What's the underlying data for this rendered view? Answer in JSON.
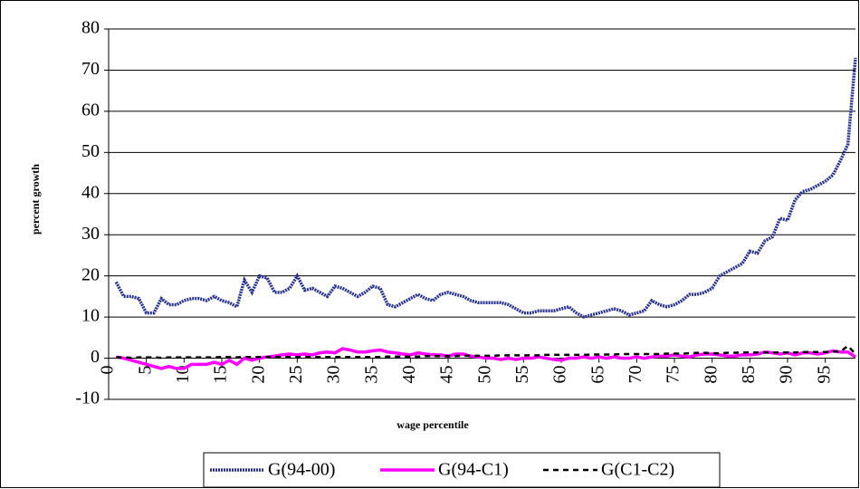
{
  "chart_data": {
    "type": "line",
    "x_label": "wage percentile",
    "y_label": "percent growth",
    "x": [
      1,
      2,
      3,
      4,
      5,
      6,
      7,
      8,
      9,
      10,
      11,
      12,
      13,
      14,
      15,
      16,
      17,
      18,
      19,
      20,
      21,
      22,
      23,
      24,
      25,
      26,
      27,
      28,
      29,
      30,
      31,
      32,
      33,
      34,
      35,
      36,
      37,
      38,
      39,
      40,
      41,
      42,
      43,
      44,
      45,
      46,
      47,
      48,
      49,
      50,
      51,
      52,
      53,
      54,
      55,
      56,
      57,
      58,
      59,
      60,
      61,
      62,
      63,
      64,
      65,
      66,
      67,
      68,
      69,
      70,
      71,
      72,
      73,
      74,
      75,
      76,
      77,
      78,
      79,
      80,
      81,
      82,
      83,
      84,
      85,
      86,
      87,
      88,
      89,
      90,
      91,
      92,
      93,
      94,
      95,
      96,
      97,
      98,
      99
    ],
    "series": [
      {
        "name": "G(94-00)",
        "color": "#26318f",
        "dashed": false,
        "values": [
          18.5,
          15,
          15,
          14.5,
          11,
          11,
          14.5,
          13,
          13,
          14,
          14.5,
          14.5,
          14,
          15,
          14,
          13.5,
          12.5,
          19,
          16,
          20,
          19.5,
          16,
          16,
          17,
          20,
          16.5,
          17,
          16,
          15,
          17.5,
          17,
          16,
          15,
          16,
          17.5,
          17,
          13,
          12.5,
          13.5,
          14.5,
          15.5,
          14.5,
          14,
          15.5,
          16,
          15.5,
          15,
          14,
          13.5,
          13.5,
          13.5,
          13.5,
          13,
          12,
          11,
          11,
          11.5,
          11.5,
          11.5,
          12,
          12.5,
          11,
          10,
          10.5,
          11,
          11.5,
          12,
          11.5,
          10.5,
          11,
          11.5,
          14,
          13,
          12.5,
          13,
          14,
          15.5,
          15.5,
          16,
          17,
          20,
          21,
          22,
          23,
          26,
          25.5,
          28.5,
          29.5,
          34,
          33.5,
          38.5,
          40.5,
          41,
          42,
          43,
          44.5,
          48,
          52,
          73
        ]
      },
      {
        "name": "G(94-C1)",
        "color": "#ff00ff",
        "dashed": false,
        "values": [
          0.3,
          0,
          -0.5,
          -1,
          -1.5,
          -2,
          -2.5,
          -2,
          -2.5,
          -2.5,
          -1.5,
          -1.5,
          -1.5,
          -1,
          -1.5,
          -0.5,
          -1.5,
          0,
          -0.5,
          0,
          0.3,
          0.5,
          0.8,
          1,
          0.8,
          1,
          0.8,
          1.3,
          1.5,
          1.3,
          2.3,
          2,
          1.5,
          1.5,
          1.8,
          2,
          1.5,
          1.3,
          1,
          0.8,
          1.3,
          1,
          0.8,
          0.8,
          0.5,
          1,
          1,
          0.5,
          0.3,
          0,
          0,
          -0.3,
          0,
          -0.3,
          0,
          0,
          0.3,
          0,
          -0.3,
          -0.5,
          0,
          0,
          0.3,
          0,
          0.3,
          0,
          0.3,
          0,
          0,
          0.3,
          0,
          0.3,
          0.5,
          0.5,
          0.8,
          0.5,
          0.3,
          0.8,
          1,
          1,
          0.8,
          0.5,
          0.5,
          0.8,
          0.8,
          1,
          1.5,
          1.3,
          1,
          1.3,
          0.8,
          1.3,
          1.3,
          1,
          1.3,
          1.8,
          1.5,
          1.5,
          0.3
        ]
      },
      {
        "name": "G(C1-C2)",
        "color": "#000000",
        "dashed": true,
        "values": [
          0.2,
          0.2,
          0.1,
          0.2,
          0.2,
          0.2,
          0.1,
          0.2,
          0.2,
          0.2,
          0.2,
          0.2,
          0.2,
          0.2,
          0.3,
          0.3,
          0.2,
          0.3,
          0.3,
          0.3,
          0.3,
          0.3,
          0.3,
          0.3,
          0.3,
          0.3,
          0.3,
          0.3,
          0.3,
          0.3,
          0.3,
          0.3,
          0.3,
          0.3,
          0.3,
          0.3,
          0.4,
          0.4,
          0.4,
          0.4,
          0.4,
          0.5,
          0.5,
          0.5,
          0.5,
          0.5,
          0.6,
          0.6,
          0.6,
          0.6,
          0.6,
          0.7,
          0.7,
          0.7,
          0.7,
          0.7,
          0.7,
          0.8,
          0.8,
          0.8,
          0.8,
          0.8,
          0.8,
          0.9,
          0.9,
          0.9,
          0.9,
          1,
          1,
          1,
          1,
          1,
          1,
          1.1,
          1.1,
          1.1,
          1.2,
          1.3,
          1.3,
          1.2,
          1.2,
          1.3,
          1.3,
          1.4,
          1.4,
          1.4,
          1.4,
          1.4,
          1.4,
          1.4,
          1.4,
          1.5,
          1.5,
          1.5,
          1.5,
          1.6,
          1.6,
          3,
          1
        ]
      }
    ],
    "xlim": [
      0,
      99
    ],
    "xticks": [
      0,
      5,
      10,
      15,
      20,
      25,
      30,
      35,
      40,
      45,
      50,
      55,
      60,
      65,
      70,
      75,
      80,
      85,
      90,
      95
    ],
    "ylim": [
      -10,
      80
    ],
    "yticks": [
      -10,
      0,
      10,
      20,
      30,
      40,
      50,
      60,
      70,
      80
    ],
    "grid": true,
    "legend": "bottom"
  }
}
